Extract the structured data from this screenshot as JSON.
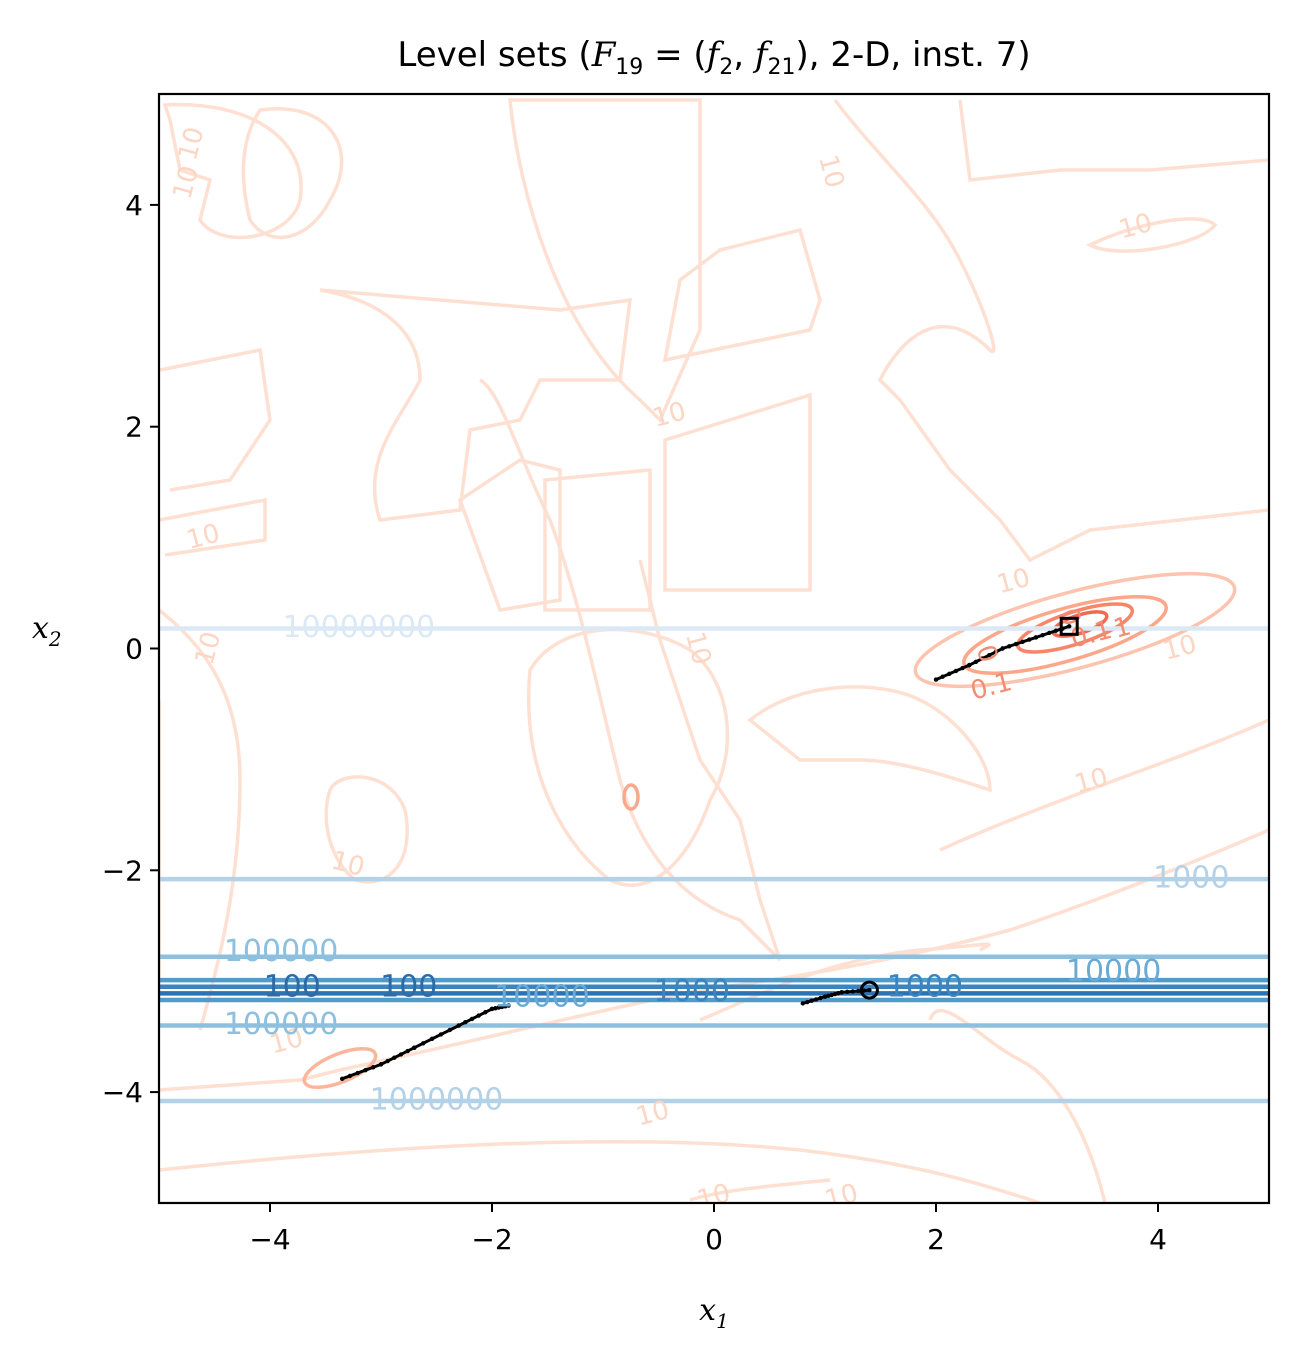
{
  "chart_data": {
    "type": "contour",
    "title": "Level sets (F19 = (f2, f21), 2-D, inst. 7)",
    "title_parts": {
      "prefix": "Level sets (",
      "F": "F",
      "F_sub": "19",
      "eq": " = (",
      "f1": "f",
      "f1_sub": "2",
      "comma": ", ",
      "f2": "f",
      "f2_sub": "21",
      "suffix": "), 2-D, inst. 7)"
    },
    "xlabel": "x1",
    "xlabel_parts": {
      "base": "x",
      "sub": "1"
    },
    "ylabel": "x2",
    "ylabel_parts": {
      "base": "x",
      "sub": "2"
    },
    "xlim": [
      -5,
      5
    ],
    "ylim": [
      -5,
      5
    ],
    "x_ticks": [
      -4,
      -2,
      0,
      2,
      4
    ],
    "y_ticks": [
      -4,
      -2,
      0,
      2,
      4
    ],
    "x_tick_labels": [
      "−4",
      "−2",
      "0",
      "2",
      "4"
    ],
    "y_tick_labels": [
      "−4",
      "−2",
      "0",
      "2",
      "4"
    ],
    "grid": false,
    "blue_levels": [
      {
        "y": 0.18,
        "color": "#dbe9f6"
      },
      {
        "y": -2.08,
        "color": "#b3d1e7"
      },
      {
        "y": -2.78,
        "color": "#8dbfdf"
      },
      {
        "y": -2.99,
        "color": "#4f9bcb"
      },
      {
        "y": -3.05,
        "color": "#3a84c0"
      },
      {
        "y": -3.11,
        "color": "#2c73b4"
      },
      {
        "y": -3.17,
        "color": "#4f9bcb"
      },
      {
        "y": -3.4,
        "color": "#8dbfdf"
      },
      {
        "y": -4.08,
        "color": "#b3d1e7"
      }
    ],
    "blue_labels": [
      {
        "text": "10000000",
        "x": -3.2,
        "y": 0.18,
        "color": "#dbe9f6"
      },
      {
        "text": "1000",
        "x": 4.3,
        "y": -2.08,
        "color": "#b3d1e7"
      },
      {
        "text": "100000",
        "x": -3.9,
        "y": -2.74,
        "color": "#8dbfdf"
      },
      {
        "text": "10000",
        "x": 3.6,
        "y": -2.92,
        "color": "#6aaad5"
      },
      {
        "text": "100",
        "x": -3.8,
        "y": -3.06,
        "color": "#2c6aa8"
      },
      {
        "text": "100",
        "x": -2.75,
        "y": -3.06,
        "color": "#2c6aa8"
      },
      {
        "text": "10000",
        "x": -1.55,
        "y": -3.15,
        "color": "#6aaad5"
      },
      {
        "text": "1000",
        "x": -0.2,
        "y": -3.1,
        "color": "#3a84c0"
      },
      {
        "text": "1000",
        "x": 1.9,
        "y": -3.06,
        "color": "#3a84c0"
      },
      {
        "text": "100000",
        "x": -3.9,
        "y": -3.4,
        "color": "#8dbfdf"
      },
      {
        "text": "1000000",
        "x": -2.5,
        "y": -4.08,
        "color": "#b3d1e7"
      }
    ],
    "red_labels": [
      {
        "text": "10",
        "x": -4.7,
        "y": 4.55,
        "rot": -75
      },
      {
        "text": "10",
        "x": -4.75,
        "y": 4.2,
        "rot": -75
      },
      {
        "text": "10",
        "x": 1.05,
        "y": 4.3,
        "rot": 75
      },
      {
        "text": "10",
        "x": 3.8,
        "y": 3.8,
        "rot": -15
      },
      {
        "text": "10",
        "x": -0.4,
        "y": 2.1,
        "rot": -15
      },
      {
        "text": "10",
        "x": -4.6,
        "y": 1.0,
        "rot": -15
      },
      {
        "text": "10",
        "x": 2.7,
        "y": 0.6,
        "rot": -15
      },
      {
        "text": "10",
        "x": 4.2,
        "y": 0.0,
        "rot": -15
      },
      {
        "text": "10",
        "x": -4.55,
        "y": 0.0,
        "rot": -75
      },
      {
        "text": "10",
        "x": -0.15,
        "y": 0.0,
        "rot": 75
      },
      {
        "text": "10",
        "x": 3.4,
        "y": -1.2,
        "rot": -15
      },
      {
        "text": "10",
        "x": -3.3,
        "y": -1.95,
        "rot": 15
      },
      {
        "text": "10",
        "x": -0.55,
        "y": -4.2,
        "rot": -15
      },
      {
        "text": "10",
        "x": -3.85,
        "y": -3.55,
        "rot": -15
      },
      {
        "text": "10",
        "x": 0.0,
        "y": -4.95,
        "rot": -15
      },
      {
        "text": "10",
        "x": 1.15,
        "y": -4.95,
        "rot": -15
      },
      {
        "text": "0",
        "x": 2.45,
        "y": -0.05,
        "rot": 70
      },
      {
        "text": "0",
        "x": 3.2,
        "y": 0.28,
        "rot": 70
      },
      {
        "text": "0.1",
        "x": 2.5,
        "y": -0.35,
        "rot": -15
      },
      {
        "text": "0.1",
        "x": 3.4,
        "y": 0.12,
        "rot": -15
      },
      {
        "text": "1",
        "x": 3.68,
        "y": 0.18,
        "rot": -15
      }
    ],
    "markers": {
      "start_circle": {
        "x": 1.4,
        "y": -3.08
      },
      "end_square": {
        "x": 3.2,
        "y": 0.2
      }
    },
    "trajectories": [
      {
        "name": "path-a",
        "points": [
          [
            1.4,
            -3.08
          ],
          [
            1.15,
            -3.1
          ],
          [
            1.0,
            -3.14
          ],
          [
            0.8,
            -3.2
          ]
        ]
      },
      {
        "name": "path-b",
        "points": [
          [
            -1.85,
            -3.22
          ],
          [
            -2.0,
            -3.25
          ],
          [
            -2.3,
            -3.4
          ],
          [
            -2.7,
            -3.6
          ],
          [
            -3.0,
            -3.75
          ],
          [
            -3.35,
            -3.88
          ]
        ]
      },
      {
        "name": "path-c",
        "points": [
          [
            3.2,
            0.2
          ],
          [
            2.9,
            0.1
          ],
          [
            2.6,
            0.0
          ],
          [
            2.3,
            -0.15
          ],
          [
            2.0,
            -0.28
          ]
        ]
      }
    ]
  }
}
